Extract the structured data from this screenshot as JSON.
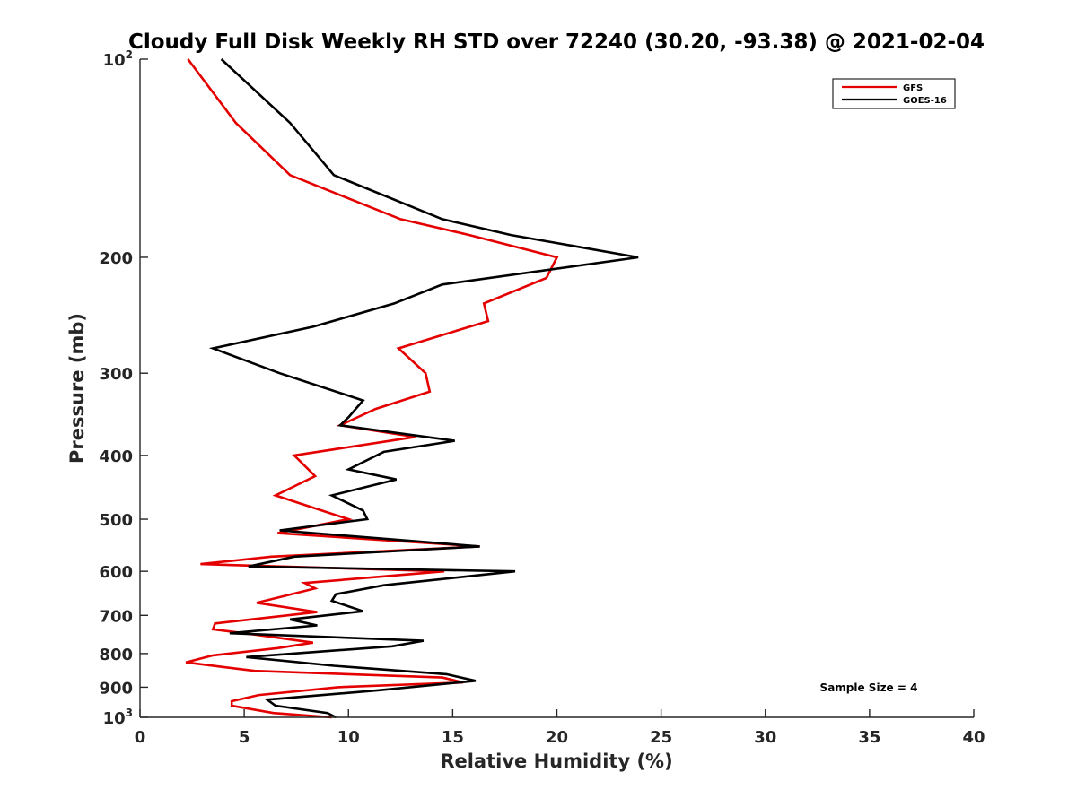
{
  "chart_data": {
    "type": "line",
    "title": "Cloudy Full Disk Weekly RH STD over 72240 (30.20, -93.38) @ 2021-02-04",
    "xlabel": "Relative Humidity (%)",
    "ylabel": "Pressure (mb)",
    "xlim": [
      0,
      40
    ],
    "ylim": [
      100,
      1000
    ],
    "yscale": "log",
    "y_reversed": true,
    "x_ticks": [
      0,
      5,
      10,
      15,
      20,
      25,
      30,
      35,
      40
    ],
    "x_tick_labels": [
      "0",
      "5",
      "10",
      "15",
      "20",
      "25",
      "30",
      "35",
      "40"
    ],
    "y_ticks": [
      100,
      200,
      300,
      400,
      500,
      600,
      700,
      800,
      900,
      1000
    ],
    "y_tick_labels": [
      {
        "base": "10",
        "exp": "2"
      },
      {
        "base": "200",
        "exp": ""
      },
      {
        "base": "300",
        "exp": ""
      },
      {
        "base": "400",
        "exp": ""
      },
      {
        "base": "500",
        "exp": ""
      },
      {
        "base": "600",
        "exp": ""
      },
      {
        "base": "700",
        "exp": ""
      },
      {
        "base": "800",
        "exp": ""
      },
      {
        "base": "900",
        "exp": ""
      },
      {
        "base": "10",
        "exp": "3"
      }
    ],
    "grid": false,
    "legend_position": "top-right",
    "annotation": "Sample Size = 4",
    "series": [
      {
        "name": "GFS",
        "color": "#e50000",
        "points": [
          [
            2.3,
            100
          ],
          [
            4.6,
            125
          ],
          [
            7.2,
            150
          ],
          [
            12.5,
            175
          ],
          [
            15.8,
            185
          ],
          [
            20.0,
            200
          ],
          [
            19.5,
            215
          ],
          [
            16.5,
            235
          ],
          [
            16.7,
            250
          ],
          [
            12.4,
            275
          ],
          [
            13.7,
            300
          ],
          [
            13.9,
            320
          ],
          [
            11.3,
            340
          ],
          [
            9.6,
            360
          ],
          [
            13.2,
            375
          ],
          [
            7.4,
            400
          ],
          [
            8.4,
            430
          ],
          [
            6.5,
            460
          ],
          [
            10.0,
            500
          ],
          [
            6.6,
            525
          ],
          [
            16.3,
            550
          ],
          [
            6.3,
            570
          ],
          [
            2.9,
            585
          ],
          [
            14.6,
            600
          ],
          [
            7.9,
            625
          ],
          [
            8.4,
            637
          ],
          [
            5.6,
            670
          ],
          [
            8.5,
            692
          ],
          [
            3.6,
            720
          ],
          [
            3.5,
            735
          ],
          [
            5.7,
            750
          ],
          [
            8.3,
            770
          ],
          [
            6.6,
            785
          ],
          [
            3.5,
            805
          ],
          [
            2.2,
            825
          ],
          [
            5.5,
            850
          ],
          [
            14.5,
            870
          ],
          [
            15.5,
            885
          ],
          [
            9.5,
            900
          ],
          [
            5.7,
            925
          ],
          [
            4.4,
            945
          ],
          [
            4.4,
            960
          ],
          [
            6.4,
            985
          ],
          [
            9.2,
            1000
          ]
        ]
      },
      {
        "name": "GOES-16",
        "color": "#000000",
        "points": [
          [
            3.9,
            100
          ],
          [
            7.2,
            125
          ],
          [
            9.3,
            150
          ],
          [
            14.5,
            175
          ],
          [
            17.8,
            185
          ],
          [
            23.9,
            200
          ],
          [
            14.5,
            220
          ],
          [
            12.2,
            235
          ],
          [
            8.3,
            255
          ],
          [
            3.5,
            275
          ],
          [
            6.7,
            300
          ],
          [
            10.7,
            330
          ],
          [
            10.0,
            350
          ],
          [
            9.6,
            360
          ],
          [
            15.1,
            380
          ],
          [
            11.7,
            395
          ],
          [
            10.0,
            420
          ],
          [
            12.3,
            435
          ],
          [
            9.2,
            460
          ],
          [
            10.7,
            485
          ],
          [
            10.9,
            500
          ],
          [
            6.7,
            520
          ],
          [
            16.3,
            550
          ],
          [
            7.4,
            570
          ],
          [
            5.2,
            590
          ],
          [
            18.0,
            600
          ],
          [
            11.7,
            630
          ],
          [
            9.4,
            650
          ],
          [
            9.2,
            665
          ],
          [
            10.7,
            690
          ],
          [
            7.2,
            710
          ],
          [
            8.5,
            725
          ],
          [
            4.3,
            745
          ],
          [
            13.6,
            765
          ],
          [
            12.1,
            780
          ],
          [
            5.1,
            810
          ],
          [
            9.3,
            835
          ],
          [
            14.7,
            860
          ],
          [
            16.1,
            880
          ],
          [
            11.4,
            910
          ],
          [
            6.1,
            940
          ],
          [
            6.5,
            960
          ],
          [
            9.0,
            985
          ],
          [
            9.4,
            1000
          ]
        ]
      }
    ]
  }
}
